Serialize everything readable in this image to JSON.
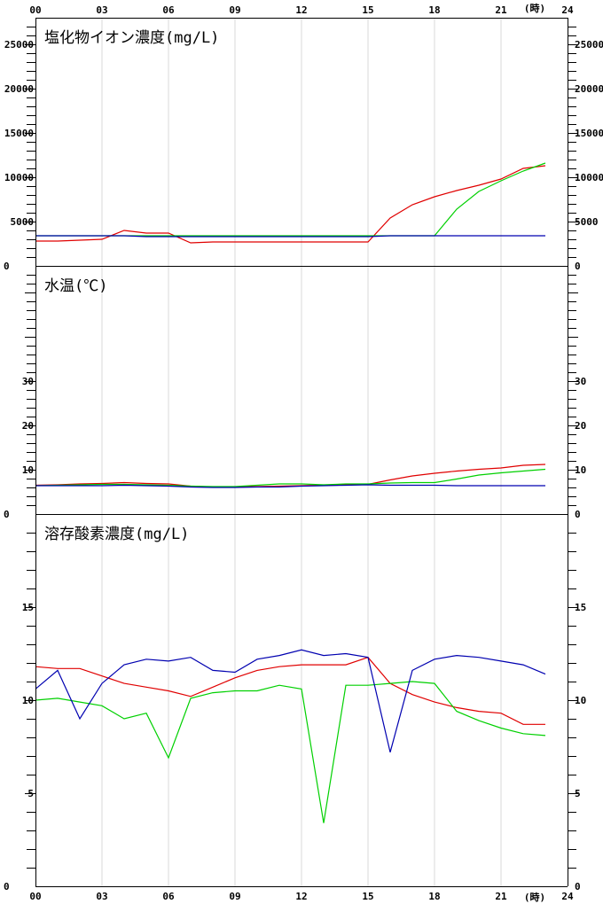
{
  "chart_data": {
    "type": "line",
    "x_label": "(時)",
    "x_ticks": [
      "00",
      "03",
      "06",
      "09",
      "12",
      "15",
      "18",
      "21",
      "24"
    ],
    "x": [
      0,
      1,
      2,
      3,
      4,
      5,
      6,
      7,
      8,
      9,
      10,
      11,
      12,
      13,
      14,
      15,
      16,
      17,
      18,
      19,
      20,
      21,
      22,
      23
    ],
    "grid": "vertical",
    "series_colors": {
      "red": "#e00000",
      "green": "#00d000",
      "blue": "#0000b0"
    },
    "panels": [
      {
        "title": "塩化物イオン濃度(mg/L)",
        "ylim": [
          0,
          28000
        ],
        "y_ticks": [
          5000,
          10000,
          15000,
          20000,
          25000
        ],
        "y_zero_label": "0",
        "series": [
          {
            "color": "red",
            "values": [
              2800,
              2800,
              2900,
              3000,
              4000,
              3700,
              3700,
              2600,
              2700,
              2700,
              2700,
              2700,
              2700,
              2700,
              2700,
              2700,
              5400,
              6900,
              7800,
              8500,
              9100,
              9800,
              11000,
              11300
            ]
          },
          {
            "color": "green",
            "values": [
              3400,
              3400,
              3400,
              3400,
              3400,
              3400,
              3400,
              3400,
              3400,
              3400,
              3400,
              3400,
              3400,
              3400,
              3400,
              3400,
              3400,
              3400,
              3400,
              6400,
              8400,
              9600,
              10700,
              11600
            ]
          },
          {
            "color": "blue",
            "values": [
              3400,
              3400,
              3400,
              3400,
              3400,
              3300,
              3300,
              3300,
              3300,
              3300,
              3300,
              3300,
              3300,
              3300,
              3300,
              3300,
              3400,
              3400,
              3400,
              3400,
              3400,
              3400,
              3400,
              3400
            ]
          }
        ]
      },
      {
        "title": "水温(℃)",
        "ylim": [
          0,
          56
        ],
        "y_ticks": [
          10,
          20,
          30
        ],
        "y_zero_label": "0",
        "series": [
          {
            "color": "red",
            "values": [
              6.5,
              6.6,
              6.8,
              6.9,
              7.1,
              6.9,
              6.8,
              6.3,
              6.1,
              6.1,
              6.2,
              6.3,
              6.4,
              6.5,
              6.6,
              6.7,
              7.7,
              8.6,
              9.2,
              9.7,
              10.1,
              10.4,
              11.0,
              11.2
            ]
          },
          {
            "color": "green",
            "values": [
              6.4,
              6.5,
              6.6,
              6.7,
              6.7,
              6.6,
              6.5,
              6.3,
              6.2,
              6.2,
              6.5,
              6.8,
              6.8,
              6.6,
              6.8,
              6.8,
              7.0,
              7.1,
              7.1,
              7.9,
              8.8,
              9.3,
              9.7,
              10.1
            ]
          },
          {
            "color": "blue",
            "values": [
              6.4,
              6.4,
              6.4,
              6.4,
              6.5,
              6.4,
              6.3,
              6.1,
              6.0,
              6.0,
              6.1,
              6.1,
              6.3,
              6.4,
              6.5,
              6.6,
              6.5,
              6.5,
              6.5,
              6.4,
              6.4,
              6.4,
              6.4,
              6.4
            ]
          }
        ]
      },
      {
        "title": "溶存酸素濃度(mg/L)",
        "ylim": [
          0,
          20
        ],
        "y_ticks": [
          5,
          10,
          15
        ],
        "y_zero_label": "0",
        "series": [
          {
            "color": "red",
            "values": [
              11.8,
              11.7,
              11.7,
              11.3,
              10.9,
              10.7,
              10.5,
              10.2,
              10.7,
              11.2,
              11.6,
              11.8,
              11.9,
              11.9,
              11.9,
              12.3,
              10.9,
              10.3,
              9.9,
              9.6,
              9.4,
              9.3,
              8.7,
              8.7
            ]
          },
          {
            "color": "green",
            "values": [
              10.0,
              10.1,
              9.9,
              9.7,
              9.0,
              9.3,
              6.9,
              10.1,
              10.4,
              10.5,
              10.5,
              10.8,
              10.6,
              3.4,
              10.8,
              10.8,
              10.9,
              11.0,
              10.9,
              9.4,
              8.9,
              8.5,
              8.2,
              8.1
            ]
          },
          {
            "color": "blue",
            "values": [
              10.6,
              11.6,
              9.0,
              10.9,
              11.9,
              12.2,
              12.1,
              12.3,
              11.6,
              11.5,
              12.2,
              12.4,
              12.7,
              12.4,
              12.5,
              12.3,
              7.2,
              11.6,
              12.2,
              12.4,
              12.3,
              12.1,
              11.9,
              11.4
            ]
          }
        ]
      }
    ]
  }
}
